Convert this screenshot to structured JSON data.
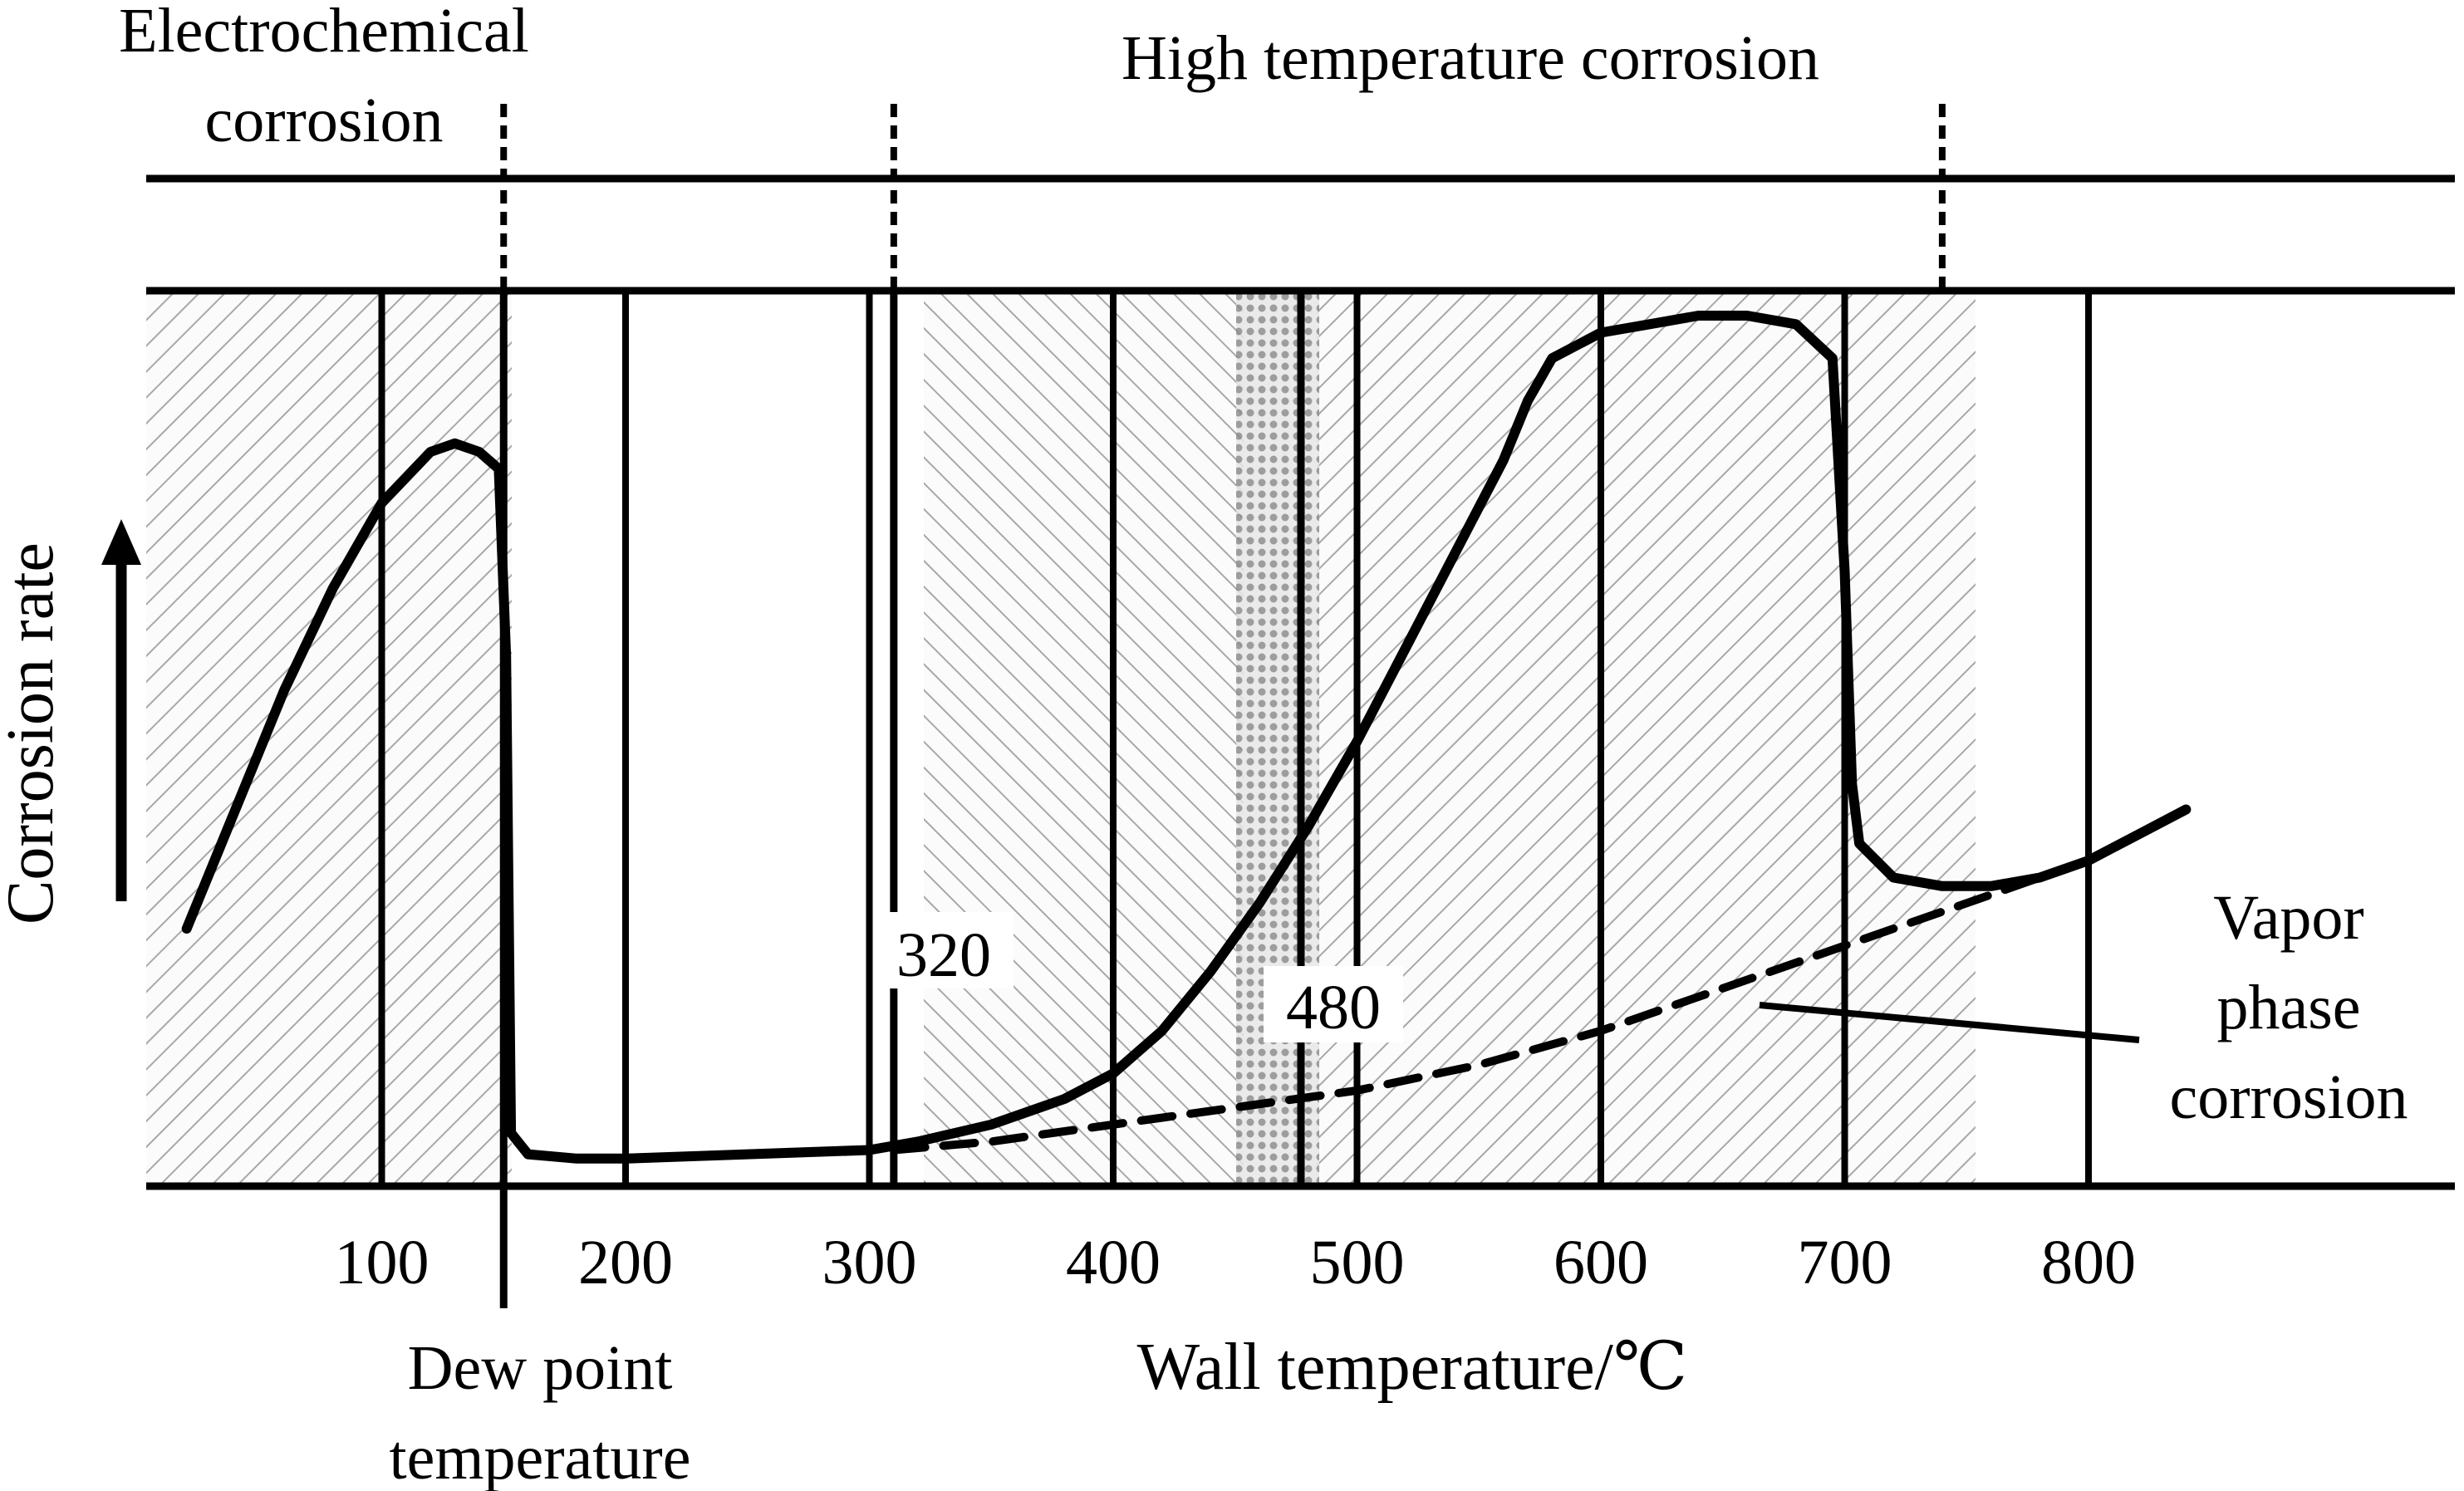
{
  "chart_data": {
    "type": "line",
    "title": "",
    "xlabel": "Wall temperature/℃",
    "ylabel": "Corrosion rate",
    "x_ticks": [
      100,
      200,
      300,
      400,
      500,
      600,
      700,
      800
    ],
    "xlim": [
      0,
      920
    ],
    "grid": false,
    "legend": "none",
    "regions": [
      {
        "name": "Electrochemical corrosion",
        "x_from": 0,
        "x_to": 150
      },
      {
        "name": "High temperature corrosion",
        "x_from": 310,
        "x_to": 740
      }
    ],
    "markers": [
      {
        "label": "320",
        "x": 310
      },
      {
        "label": "480",
        "x": 477
      },
      {
        "label": "Dew point temperature",
        "x": 150
      }
    ],
    "series": [
      {
        "name": "",
        "style": "solid",
        "x": [
          20,
          40,
          60,
          80,
          100,
          120,
          130,
          140,
          148,
          151,
          153,
          160,
          180,
          200,
          250,
          300,
          320,
          350,
          380,
          400,
          420,
          440,
          460,
          480,
          500,
          520,
          540,
          560,
          570,
          580,
          600,
          620,
          640,
          660,
          680,
          695,
          700,
          703,
          706,
          720,
          740,
          760,
          780,
          800,
          820,
          840
        ],
        "y": [
          0.28,
          0.42,
          0.56,
          0.68,
          0.78,
          0.84,
          0.85,
          0.84,
          0.82,
          0.6,
          0.04,
          0.015,
          0.01,
          0.01,
          0.015,
          0.02,
          0.03,
          0.05,
          0.08,
          0.11,
          0.16,
          0.23,
          0.31,
          0.4,
          0.5,
          0.61,
          0.72,
          0.83,
          0.9,
          0.95,
          0.98,
          0.99,
          1.0,
          1.0,
          0.99,
          0.95,
          0.7,
          0.45,
          0.38,
          0.34,
          0.33,
          0.33,
          0.34,
          0.36,
          0.39,
          0.42
        ]
      },
      {
        "name": "Vapor phase corrosion",
        "style": "dashed",
        "x": [
          310,
          350,
          400,
          450,
          500,
          550,
          600,
          650,
          700,
          750,
          780
        ],
        "y": [
          0.02,
          0.03,
          0.05,
          0.07,
          0.09,
          0.12,
          0.16,
          0.21,
          0.26,
          0.31,
          0.34
        ]
      }
    ]
  }
}
